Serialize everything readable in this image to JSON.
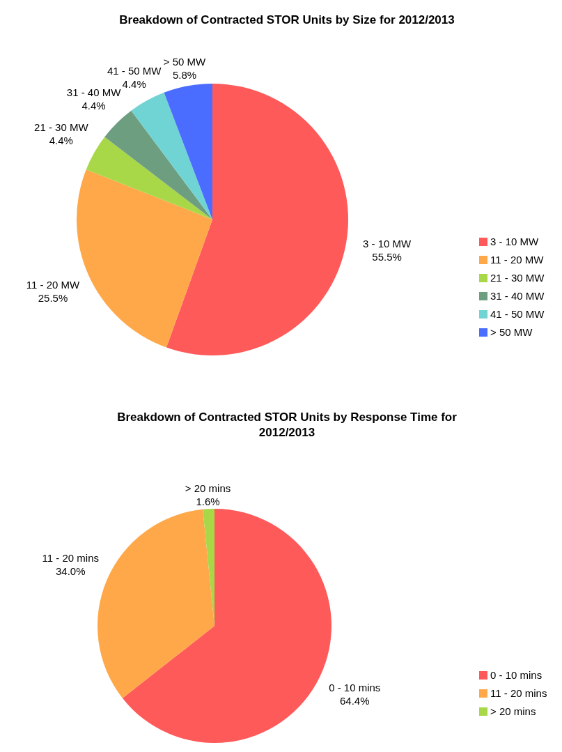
{
  "chart_data": [
    {
      "type": "pie",
      "title": "Breakdown of Contracted STOR Units by Size for 2012/2013",
      "categories": [
        "3 - 10 MW",
        "11 - 20 MW",
        "21 - 30 MW",
        "31 - 40 MW",
        "41 - 50 MW",
        "> 50 MW"
      ],
      "values": [
        55.5,
        25.5,
        4.4,
        4.4,
        4.4,
        5.8
      ],
      "colors": [
        "#ff5a5a",
        "#ffa84a",
        "#a8d848",
        "#6e9e80",
        "#70d4d4",
        "#4a6cff"
      ],
      "value_labels": [
        "55.5%",
        "25.5%",
        "4.4%",
        "4.4%",
        "4.4%",
        "5.8%"
      ],
      "legend": "right"
    },
    {
      "type": "pie",
      "title": "Breakdown of Contracted STOR Units by Response Time for 2012/2013",
      "categories": [
        "0 - 10 mins",
        "11 - 20 mins",
        "> 20 mins"
      ],
      "values": [
        64.4,
        34.0,
        1.6
      ],
      "colors": [
        "#ff5a5a",
        "#ffa84a",
        "#a8d848"
      ],
      "value_labels": [
        "64.4%",
        "34.0%",
        "1.6%"
      ],
      "legend": "right"
    }
  ]
}
